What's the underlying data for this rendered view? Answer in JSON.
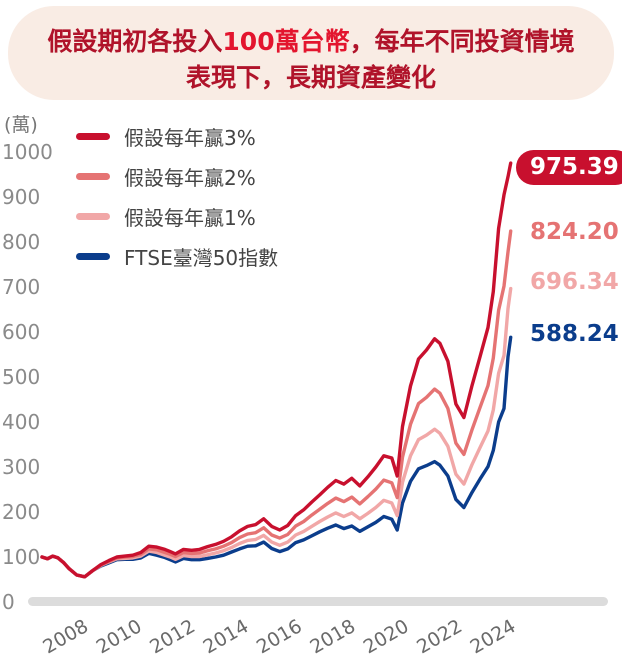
{
  "title": {
    "line1_pre": "假設期初各投入",
    "line1_hl": "100萬台幣",
    "line1_post": "，每年不同投資情境",
    "line2": "表現下，長期資產變化"
  },
  "chart_data": {
    "type": "line",
    "unit_label": "(萬)",
    "ylim": [
      0,
      1000
    ],
    "yticks": [
      0,
      100,
      200,
      300,
      400,
      500,
      600,
      700,
      800,
      900,
      1000
    ],
    "xlim": [
      2006.4,
      2024.6
    ],
    "xticks": [
      2008,
      2010,
      2012,
      2014,
      2016,
      2018,
      2020,
      2022,
      2024
    ],
    "legend_position": "top-left",
    "grid": false,
    "series": [
      {
        "name": "假設每年贏3%",
        "color": "#c8102e",
        "end_label": "975.39",
        "points": [
          [
            2007.0,
            100
          ],
          [
            2007.2,
            96
          ],
          [
            2007.4,
            102
          ],
          [
            2007.6,
            98
          ],
          [
            2007.8,
            88
          ],
          [
            2008.0,
            75
          ],
          [
            2008.3,
            60
          ],
          [
            2008.6,
            56
          ],
          [
            2008.9,
            70
          ],
          [
            2009.2,
            83
          ],
          [
            2009.5,
            92
          ],
          [
            2009.8,
            100
          ],
          [
            2010.1,
            102
          ],
          [
            2010.4,
            104
          ],
          [
            2010.7,
            110
          ],
          [
            2011.0,
            124
          ],
          [
            2011.3,
            122
          ],
          [
            2011.6,
            117
          ],
          [
            2011.8,
            112
          ],
          [
            2012.0,
            107
          ],
          [
            2012.3,
            117
          ],
          [
            2012.6,
            115
          ],
          [
            2012.9,
            117
          ],
          [
            2013.2,
            123
          ],
          [
            2013.5,
            128
          ],
          [
            2013.8,
            135
          ],
          [
            2014.1,
            145
          ],
          [
            2014.4,
            158
          ],
          [
            2014.7,
            168
          ],
          [
            2015.0,
            172
          ],
          [
            2015.3,
            185
          ],
          [
            2015.6,
            168
          ],
          [
            2015.9,
            160
          ],
          [
            2016.2,
            170
          ],
          [
            2016.5,
            192
          ],
          [
            2016.8,
            205
          ],
          [
            2017.1,
            222
          ],
          [
            2017.4,
            238
          ],
          [
            2017.7,
            255
          ],
          [
            2018.0,
            270
          ],
          [
            2018.3,
            262
          ],
          [
            2018.6,
            275
          ],
          [
            2018.9,
            258
          ],
          [
            2019.2,
            278
          ],
          [
            2019.5,
            300
          ],
          [
            2019.8,
            325
          ],
          [
            2020.1,
            320
          ],
          [
            2020.3,
            280
          ],
          [
            2020.5,
            390
          ],
          [
            2020.8,
            480
          ],
          [
            2021.1,
            540
          ],
          [
            2021.4,
            560
          ],
          [
            2021.7,
            585
          ],
          [
            2021.9,
            575
          ],
          [
            2022.2,
            535
          ],
          [
            2022.5,
            440
          ],
          [
            2022.8,
            410
          ],
          [
            2023.1,
            480
          ],
          [
            2023.4,
            545
          ],
          [
            2023.7,
            610
          ],
          [
            2023.9,
            690
          ],
          [
            2024.1,
            830
          ],
          [
            2024.3,
            905
          ],
          [
            2024.45,
            945
          ],
          [
            2024.55,
            975.39
          ]
        ]
      },
      {
        "name": "假設每年贏2%",
        "color": "#e57373",
        "end_label": "824.20",
        "points": [
          [
            2007.0,
            100
          ],
          [
            2007.2,
            96
          ],
          [
            2007.4,
            102
          ],
          [
            2007.6,
            98
          ],
          [
            2007.8,
            88
          ],
          [
            2008.0,
            75
          ],
          [
            2008.3,
            60
          ],
          [
            2008.6,
            56
          ],
          [
            2008.9,
            70
          ],
          [
            2009.2,
            82
          ],
          [
            2009.5,
            90
          ],
          [
            2009.8,
            98
          ],
          [
            2010.1,
            100
          ],
          [
            2010.4,
            101
          ],
          [
            2010.7,
            106
          ],
          [
            2011.0,
            118
          ],
          [
            2011.3,
            116
          ],
          [
            2011.6,
            110
          ],
          [
            2011.8,
            106
          ],
          [
            2012.0,
            101
          ],
          [
            2012.3,
            110
          ],
          [
            2012.6,
            108
          ],
          [
            2012.9,
            109
          ],
          [
            2013.2,
            114
          ],
          [
            2013.5,
            118
          ],
          [
            2013.8,
            124
          ],
          [
            2014.1,
            132
          ],
          [
            2014.4,
            143
          ],
          [
            2014.7,
            151
          ],
          [
            2015.0,
            154
          ],
          [
            2015.3,
            165
          ],
          [
            2015.6,
            149
          ],
          [
            2015.9,
            142
          ],
          [
            2016.2,
            150
          ],
          [
            2016.5,
            169
          ],
          [
            2016.8,
            179
          ],
          [
            2017.1,
            193
          ],
          [
            2017.4,
            206
          ],
          [
            2017.7,
            219
          ],
          [
            2018.0,
            231
          ],
          [
            2018.3,
            223
          ],
          [
            2018.6,
            233
          ],
          [
            2018.9,
            218
          ],
          [
            2019.2,
            234
          ],
          [
            2019.5,
            251
          ],
          [
            2019.8,
            271
          ],
          [
            2020.1,
            265
          ],
          [
            2020.3,
            232
          ],
          [
            2020.5,
            322
          ],
          [
            2020.8,
            395
          ],
          [
            2021.1,
            441
          ],
          [
            2021.4,
            455
          ],
          [
            2021.7,
            473
          ],
          [
            2021.9,
            464
          ],
          [
            2022.2,
            430
          ],
          [
            2022.5,
            353
          ],
          [
            2022.8,
            328
          ],
          [
            2023.1,
            382
          ],
          [
            2023.4,
            432
          ],
          [
            2023.7,
            481
          ],
          [
            2023.9,
            542
          ],
          [
            2024.1,
            648
          ],
          [
            2024.3,
            702
          ],
          [
            2024.45,
            778
          ],
          [
            2024.55,
            824.2
          ]
        ]
      },
      {
        "name": "假設每年贏1%",
        "color": "#f1a7a7",
        "end_label": "696.34",
        "points": [
          [
            2007.0,
            100
          ],
          [
            2007.2,
            96
          ],
          [
            2007.4,
            102
          ],
          [
            2007.6,
            98
          ],
          [
            2007.8,
            88
          ],
          [
            2008.0,
            75
          ],
          [
            2008.3,
            60
          ],
          [
            2008.6,
            56
          ],
          [
            2008.9,
            70
          ],
          [
            2009.2,
            81
          ],
          [
            2009.5,
            89
          ],
          [
            2009.8,
            96
          ],
          [
            2010.1,
            97
          ],
          [
            2010.4,
            98
          ],
          [
            2010.7,
            102
          ],
          [
            2011.0,
            113
          ],
          [
            2011.3,
            110
          ],
          [
            2011.6,
            104
          ],
          [
            2011.8,
            100
          ],
          [
            2012.0,
            95
          ],
          [
            2012.3,
            103
          ],
          [
            2012.6,
            101
          ],
          [
            2012.9,
            101
          ],
          [
            2013.2,
            105
          ],
          [
            2013.5,
            109
          ],
          [
            2013.8,
            114
          ],
          [
            2014.1,
            121
          ],
          [
            2014.4,
            130
          ],
          [
            2014.7,
            137
          ],
          [
            2015.0,
            139
          ],
          [
            2015.3,
            148
          ],
          [
            2015.6,
            133
          ],
          [
            2015.9,
            126
          ],
          [
            2016.2,
            133
          ],
          [
            2016.5,
            149
          ],
          [
            2016.8,
            157
          ],
          [
            2017.1,
            168
          ],
          [
            2017.4,
            179
          ],
          [
            2017.7,
            189
          ],
          [
            2018.0,
            198
          ],
          [
            2018.3,
            190
          ],
          [
            2018.6,
            198
          ],
          [
            2018.9,
            185
          ],
          [
            2019.2,
            197
          ],
          [
            2019.5,
            210
          ],
          [
            2019.8,
            226
          ],
          [
            2020.1,
            220
          ],
          [
            2020.3,
            192
          ],
          [
            2020.5,
            266
          ],
          [
            2020.8,
            325
          ],
          [
            2021.1,
            361
          ],
          [
            2021.4,
            371
          ],
          [
            2021.7,
            384
          ],
          [
            2021.9,
            375
          ],
          [
            2022.2,
            346
          ],
          [
            2022.5,
            284
          ],
          [
            2022.8,
            262
          ],
          [
            2023.1,
            305
          ],
          [
            2023.4,
            343
          ],
          [
            2023.7,
            380
          ],
          [
            2023.9,
            427
          ],
          [
            2024.1,
            508
          ],
          [
            2024.3,
            548
          ],
          [
            2024.45,
            652
          ],
          [
            2024.55,
            696.34
          ]
        ]
      },
      {
        "name": "FTSE臺灣50指數",
        "color": "#0b3d8c",
        "end_label": "588.24",
        "points": [
          [
            2007.0,
            100
          ],
          [
            2007.2,
            96
          ],
          [
            2007.4,
            102
          ],
          [
            2007.6,
            98
          ],
          [
            2007.8,
            88
          ],
          [
            2008.0,
            75
          ],
          [
            2008.3,
            60
          ],
          [
            2008.6,
            56
          ],
          [
            2008.9,
            70
          ],
          [
            2009.2,
            80
          ],
          [
            2009.5,
            87
          ],
          [
            2009.8,
            94
          ],
          [
            2010.1,
            95
          ],
          [
            2010.4,
            95
          ],
          [
            2010.7,
            98
          ],
          [
            2011.0,
            108
          ],
          [
            2011.3,
            104
          ],
          [
            2011.6,
            99
          ],
          [
            2011.8,
            94
          ],
          [
            2012.0,
            89
          ],
          [
            2012.3,
            97
          ],
          [
            2012.6,
            94
          ],
          [
            2012.9,
            94
          ],
          [
            2013.2,
            97
          ],
          [
            2013.5,
            100
          ],
          [
            2013.8,
            104
          ],
          [
            2014.1,
            111
          ],
          [
            2014.4,
            118
          ],
          [
            2014.7,
            124
          ],
          [
            2015.0,
            125
          ],
          [
            2015.3,
            133
          ],
          [
            2015.6,
            119
          ],
          [
            2015.9,
            112
          ],
          [
            2016.2,
            118
          ],
          [
            2016.5,
            132
          ],
          [
            2016.8,
            138
          ],
          [
            2017.1,
            147
          ],
          [
            2017.4,
            156
          ],
          [
            2017.7,
            164
          ],
          [
            2018.0,
            171
          ],
          [
            2018.3,
            163
          ],
          [
            2018.6,
            169
          ],
          [
            2018.9,
            157
          ],
          [
            2019.2,
            167
          ],
          [
            2019.5,
            177
          ],
          [
            2019.8,
            190
          ],
          [
            2020.1,
            184
          ],
          [
            2020.3,
            160
          ],
          [
            2020.5,
            220
          ],
          [
            2020.8,
            268
          ],
          [
            2021.1,
            296
          ],
          [
            2021.4,
            303
          ],
          [
            2021.7,
            312
          ],
          [
            2021.9,
            304
          ],
          [
            2022.2,
            280
          ],
          [
            2022.5,
            228
          ],
          [
            2022.8,
            210
          ],
          [
            2023.1,
            243
          ],
          [
            2023.4,
            273
          ],
          [
            2023.7,
            301
          ],
          [
            2023.9,
            337
          ],
          [
            2024.1,
            400
          ],
          [
            2024.3,
            430
          ],
          [
            2024.45,
            545
          ],
          [
            2024.55,
            588.24
          ]
        ]
      }
    ]
  }
}
